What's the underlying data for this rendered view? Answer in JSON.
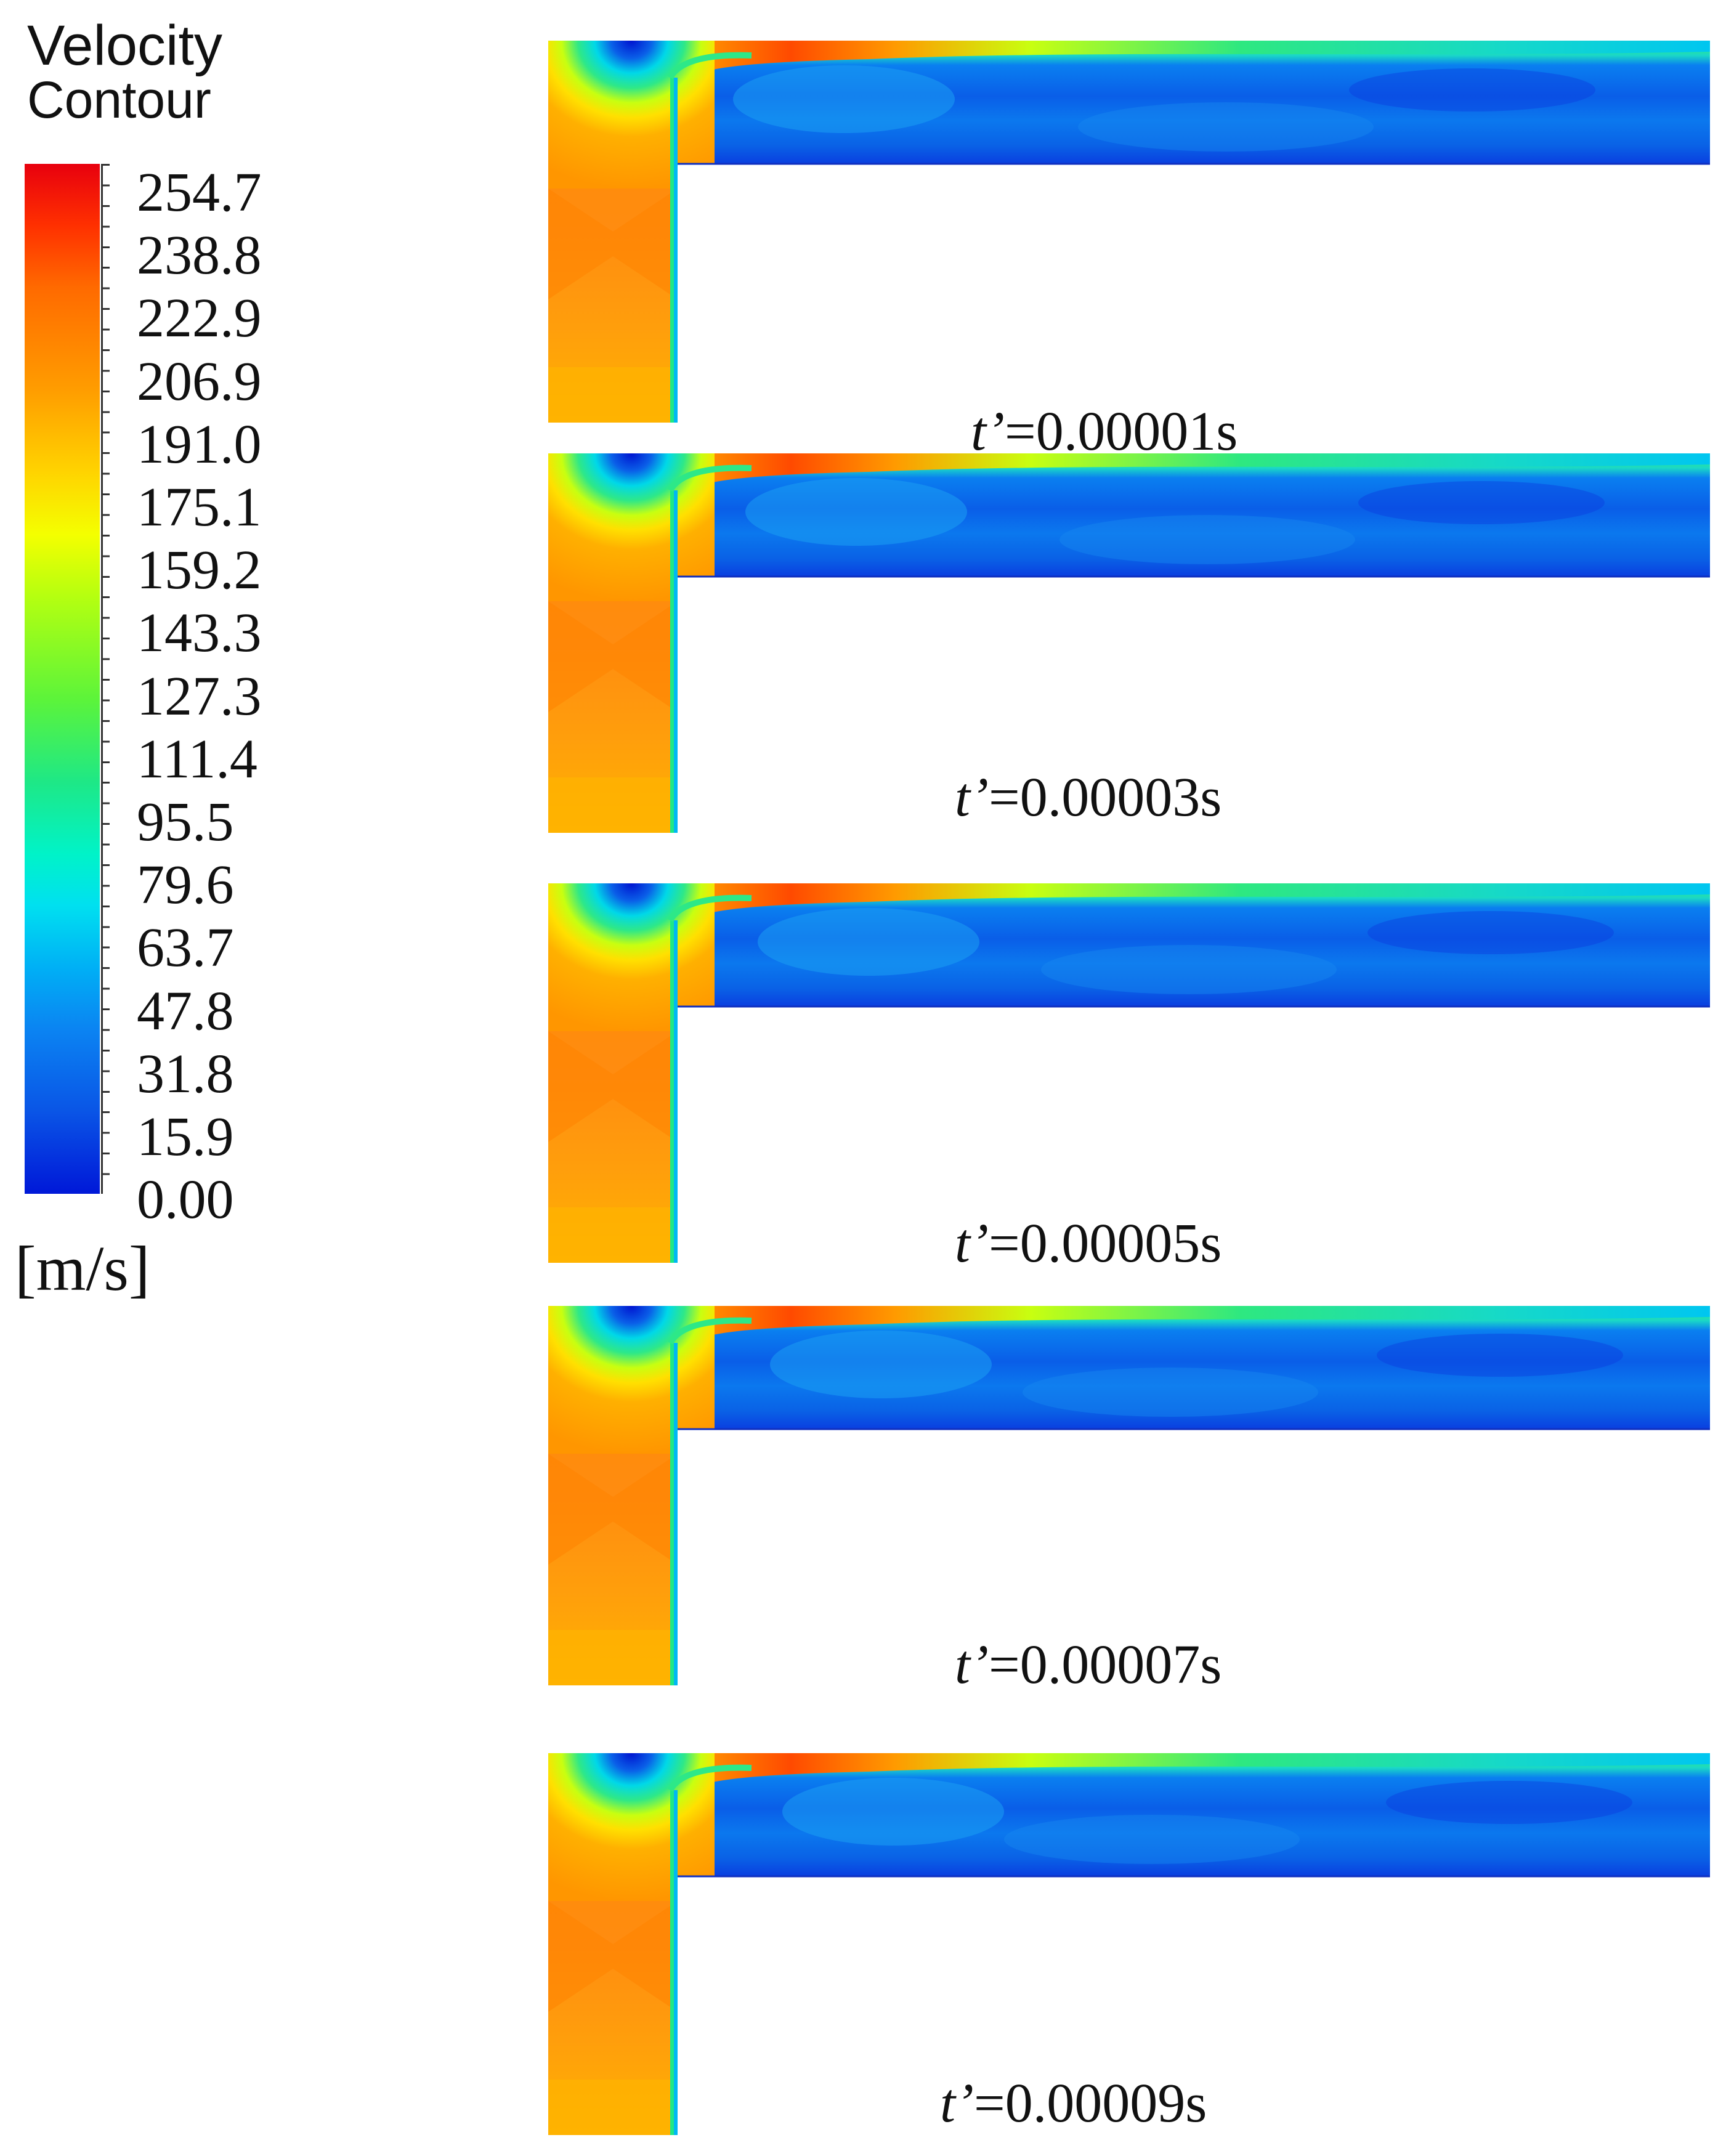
{
  "legend": {
    "title_line1": "Velocity",
    "title_line2": "Contour",
    "labels": [
      "254.7",
      "238.8",
      "222.9",
      "206.9",
      "191.0",
      "175.1",
      "159.2",
      "143.3",
      "127.3",
      "111.4",
      "95.5",
      "79.6",
      "63.7",
      "47.8",
      "31.8",
      "15.9",
      "0.00"
    ],
    "units": "[m/s]",
    "min_value": 0.0,
    "max_value": 254.7,
    "colormap_colors": [
      "#0018d8",
      "#0a55e6",
      "#0b84f2",
      "#00b0f5",
      "#00e0f0",
      "#00f3c8",
      "#1ee886",
      "#5cf43a",
      "#b5ff10",
      "#f4ff00",
      "#ffd400",
      "#ff9d00",
      "#ff6a00",
      "#ff3000",
      "#e8000e"
    ]
  },
  "panels": [
    {
      "time_var": "t’",
      "time_value": "=0.00001s"
    },
    {
      "time_var": "t’",
      "time_value": "=0.00003s"
    },
    {
      "time_var": "t’",
      "time_value": "=0.00005s"
    },
    {
      "time_var": "t’",
      "time_value": "=0.00007s"
    },
    {
      "time_var": "t’",
      "time_value": "=0.00009s"
    }
  ]
}
